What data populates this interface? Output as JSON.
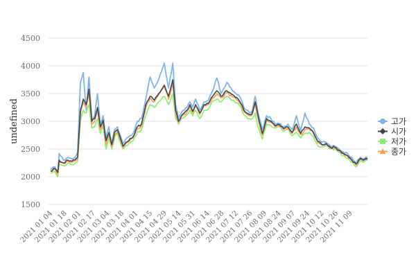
{
  "chart_data": {
    "type": "line",
    "ylabel": "undefined",
    "ylim": [
      1500,
      4500
    ],
    "y_ticks": [
      "1500",
      "2000",
      "2500",
      "3000",
      "3500",
      "4000",
      "4500"
    ],
    "grid": true,
    "legend_position": "right",
    "x_tick_labels": [
      "2021 01 04",
      "2021 01 18",
      "2021 02 01",
      "2021 02 17",
      "2021 03 04",
      "2021 03 18",
      "2021 04 01",
      "2021 04 15",
      "2021 04 29",
      "2021 05 14",
      "2021 05 31",
      "2021 06 14",
      "2021 06 28",
      "2021 07 12",
      "2021 07 26",
      "2021 08 09",
      "2021 08 24",
      "2021 09 07",
      "2021 09 24",
      "2021 10 12",
      "2021 10 26",
      "2021 11 09"
    ],
    "x_points": 224,
    "knots_index": [
      0,
      3,
      5,
      6,
      9,
      12,
      15,
      18,
      19,
      21,
      23,
      25,
      27,
      29,
      31,
      33,
      35,
      37,
      39,
      41,
      43,
      45,
      47,
      49,
      51,
      53,
      55,
      58,
      61,
      64,
      67,
      70,
      73,
      76,
      80,
      83,
      86,
      88,
      90,
      92,
      94,
      96,
      98,
      100,
      102,
      105,
      108,
      111,
      114,
      117,
      120,
      124,
      128,
      132,
      134,
      136,
      138,
      140,
      142,
      144,
      146,
      149,
      152,
      155,
      158,
      161,
      164,
      167,
      170,
      173,
      176,
      179,
      182,
      185,
      188,
      191,
      194,
      197,
      200,
      203,
      206,
      209,
      212,
      215,
      218,
      220,
      222,
      223
    ],
    "series": [
      {
        "name": "고가",
        "color": "#7cb5ec",
        "marker": "circle",
        "values": [
          2120,
          2180,
          2050,
          2420,
          2300,
          2350,
          2320,
          2380,
          2450,
          3700,
          3880,
          3200,
          3800,
          3050,
          3100,
          3500,
          2950,
          3100,
          2700,
          2900,
          2600,
          2850,
          2900,
          2750,
          2600,
          2680,
          2720,
          2780,
          3000,
          3050,
          3400,
          3800,
          3600,
          3750,
          4050,
          3600,
          4050,
          3300,
          3050,
          3150,
          3200,
          3250,
          3350,
          3250,
          3400,
          3200,
          3350,
          3380,
          3550,
          3780,
          3500,
          3700,
          3550,
          3480,
          3400,
          3250,
          3200,
          3150,
          3200,
          3450,
          3150,
          2850,
          3100,
          3050,
          2950,
          2960,
          2900,
          2950,
          2850,
          3100,
          2830,
          3150,
          2950,
          2880,
          2700,
          2620,
          2620,
          2550,
          2550,
          2500,
          2450,
          2420,
          2350,
          2250,
          2350,
          2320,
          2360,
          2330
        ]
      },
      {
        "name": "시가",
        "color": "#434348",
        "marker": "diamond",
        "values": [
          2100,
          2150,
          2080,
          2300,
          2250,
          2300,
          2280,
          2330,
          2350,
          3200,
          3400,
          3300,
          3580,
          3000,
          3050,
          3250,
          2900,
          3020,
          2650,
          2800,
          2580,
          2800,
          2850,
          2700,
          2550,
          2620,
          2650,
          2720,
          2900,
          2950,
          3300,
          3450,
          3380,
          3500,
          3650,
          3450,
          3750,
          3200,
          3000,
          3100,
          3150,
          3200,
          3300,
          3180,
          3300,
          3150,
          3300,
          3320,
          3450,
          3550,
          3450,
          3550,
          3480,
          3400,
          3320,
          3200,
          3150,
          3120,
          3150,
          3350,
          3100,
          2780,
          3050,
          3000,
          2920,
          2940,
          2870,
          2900,
          2800,
          2950,
          2780,
          2900,
          2880,
          2800,
          2640,
          2580,
          2600,
          2530,
          2530,
          2480,
          2420,
          2380,
          2300,
          2230,
          2330,
          2300,
          2330,
          2320
        ]
      },
      {
        "name": "저가",
        "color": "#90ed7d",
        "marker": "square",
        "values": [
          2070,
          2090,
          2000,
          2220,
          2200,
          2240,
          2220,
          2260,
          2280,
          3000,
          3200,
          3150,
          3300,
          2880,
          2900,
          3050,
          2780,
          2920,
          2500,
          2700,
          2500,
          2700,
          2780,
          2620,
          2500,
          2560,
          2600,
          2650,
          2800,
          2850,
          3100,
          3300,
          3250,
          3350,
          3450,
          3300,
          3500,
          3050,
          2950,
          3050,
          3080,
          3120,
          3200,
          3100,
          3200,
          3050,
          3200,
          3220,
          3350,
          3400,
          3350,
          3450,
          3380,
          3320,
          3250,
          3120,
          3080,
          3050,
          3050,
          3150,
          2900,
          2680,
          2950,
          2920,
          2880,
          2900,
          2820,
          2860,
          2740,
          2800,
          2700,
          2780,
          2800,
          2720,
          2560,
          2540,
          2560,
          2500,
          2500,
          2440,
          2380,
          2330,
          2260,
          2180,
          2280,
          2260,
          2300,
          2290
        ]
      },
      {
        "name": "종가",
        "color": "#f7a35c",
        "marker": "triangle",
        "values": [
          2090,
          2140,
          2050,
          2280,
          2240,
          2280,
          2260,
          2300,
          2320,
          3150,
          3350,
          3250,
          3500,
          2950,
          3000,
          3200,
          2850,
          2980,
          2580,
          2760,
          2540,
          2760,
          2820,
          2660,
          2530,
          2600,
          2630,
          2700,
          2860,
          2920,
          3250,
          3420,
          3350,
          3480,
          3650,
          3400,
          3700,
          3150,
          2980,
          3080,
          3120,
          3170,
          3270,
          3150,
          3280,
          3120,
          3280,
          3300,
          3420,
          3500,
          3420,
          3520,
          3440,
          3380,
          3300,
          3180,
          3130,
          3100,
          3120,
          3300,
          3050,
          2750,
          3020,
          2980,
          2900,
          2920,
          2850,
          2880,
          2780,
          2900,
          2760,
          2850,
          2860,
          2780,
          2620,
          2570,
          2590,
          2520,
          2520,
          2470,
          2410,
          2370,
          2290,
          2210,
          2310,
          2290,
          2320,
          2310
        ]
      }
    ]
  }
}
